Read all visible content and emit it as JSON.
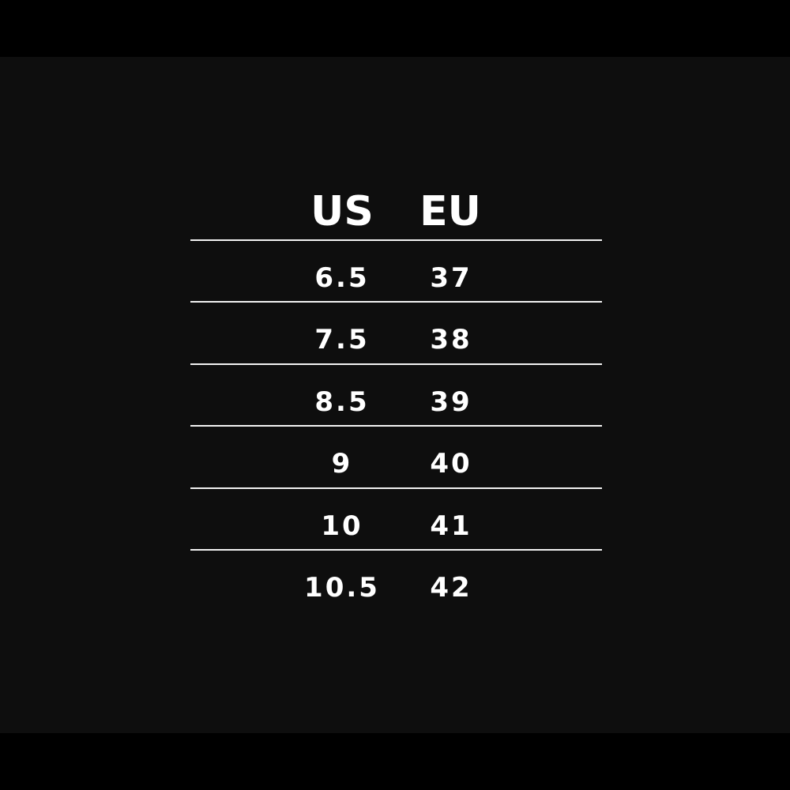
{
  "table": {
    "headers": [
      "US",
      "EU"
    ],
    "rows": [
      [
        "6.5",
        "37"
      ],
      [
        "7.5",
        "38"
      ],
      [
        "8.5",
        "39"
      ],
      [
        "9",
        "40"
      ],
      [
        "10",
        "41"
      ],
      [
        "10.5",
        "42"
      ]
    ]
  },
  "colors": {
    "background": "#0e0e0e",
    "letterbox": "#000000",
    "text": "#ffffff",
    "rule": "#f2f2f2"
  }
}
